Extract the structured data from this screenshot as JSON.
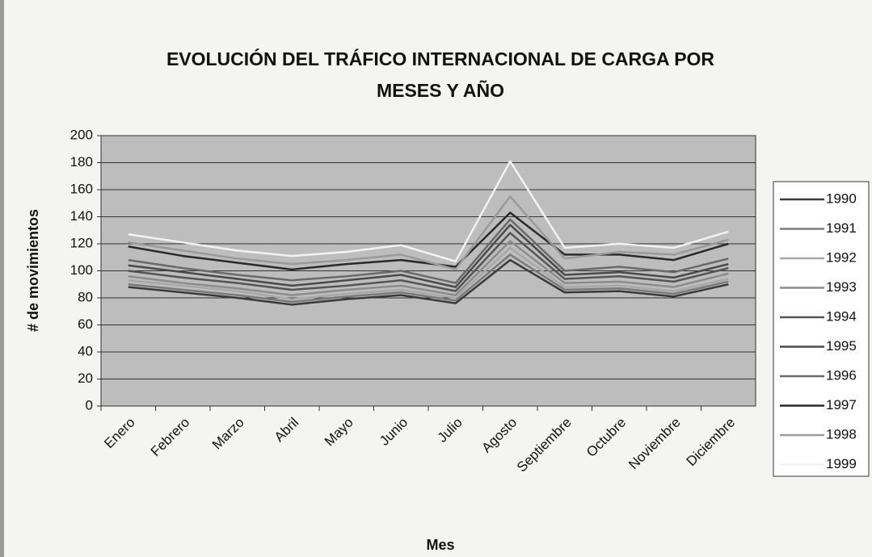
{
  "chart_data": {
    "type": "line",
    "title": [
      "EVOLUCIÓN DEL TRÁFICO INTERNACIONAL DE CARGA POR",
      "MESES Y AÑO"
    ],
    "x_label": "Mes",
    "y_label": "# de movimientos",
    "categories": [
      "Enero",
      "Febrero",
      "Marzo",
      "Abril",
      "Mayo",
      "Junio",
      "Julio",
      "Agosto",
      "Septiembre",
      "Octubre",
      "Noviembre",
      "Diciembre"
    ],
    "series": [
      {
        "name": "1990",
        "color": "#3a3a3a",
        "values": [
          88,
          84,
          80,
          75,
          79,
          82,
          76,
          108,
          84,
          85,
          81,
          90
        ]
      },
      {
        "name": "1991",
        "color": "#7a7a7a",
        "values": [
          90,
          86,
          82,
          77,
          81,
          84,
          78,
          112,
          86,
          87,
          83,
          92
        ]
      },
      {
        "name": "1992",
        "color": "#a8a8a8",
        "values": [
          93,
          89,
          85,
          79,
          83,
          86,
          80,
          117,
          88,
          89,
          85,
          94
        ]
      },
      {
        "name": "1993",
        "color": "#8c8c8c",
        "values": [
          96,
          91,
          87,
          82,
          86,
          89,
          82,
          122,
          91,
          92,
          88,
          98
        ]
      },
      {
        "name": "1994",
        "color": "#555555",
        "values": [
          100,
          95,
          91,
          86,
          89,
          93,
          85,
          128,
          94,
          96,
          92,
          102
        ]
      },
      {
        "name": "1995",
        "color": "#4a4a4a",
        "values": [
          104,
          99,
          94,
          89,
          93,
          97,
          88,
          134,
          97,
          99,
          95,
          105
        ]
      },
      {
        "name": "1996",
        "color": "#6a6a6a",
        "values": [
          108,
          102,
          97,
          93,
          96,
          100,
          91,
          138,
          100,
          103,
          99,
          109
        ]
      },
      {
        "name": "1997",
        "color": "#2a2a2a",
        "values": [
          118,
          111,
          106,
          101,
          105,
          108,
          103,
          143,
          112,
          112,
          108,
          120
        ]
      },
      {
        "name": "1998",
        "color": "#9a9a9a",
        "values": [
          121,
          115,
          109,
          105,
          108,
          112,
          101,
          155,
          109,
          114,
          112,
          123
        ]
      },
      {
        "name": "1999",
        "color": "#f2f2f2",
        "values": [
          127,
          121,
          115,
          111,
          114,
          119,
          107,
          181,
          117,
          120,
          117,
          129
        ]
      }
    ],
    "ylim": [
      0,
      200
    ],
    "yticks": [
      0,
      20,
      40,
      60,
      80,
      100,
      120,
      140,
      160,
      180,
      200
    ],
    "grid": true,
    "legend": "right"
  }
}
